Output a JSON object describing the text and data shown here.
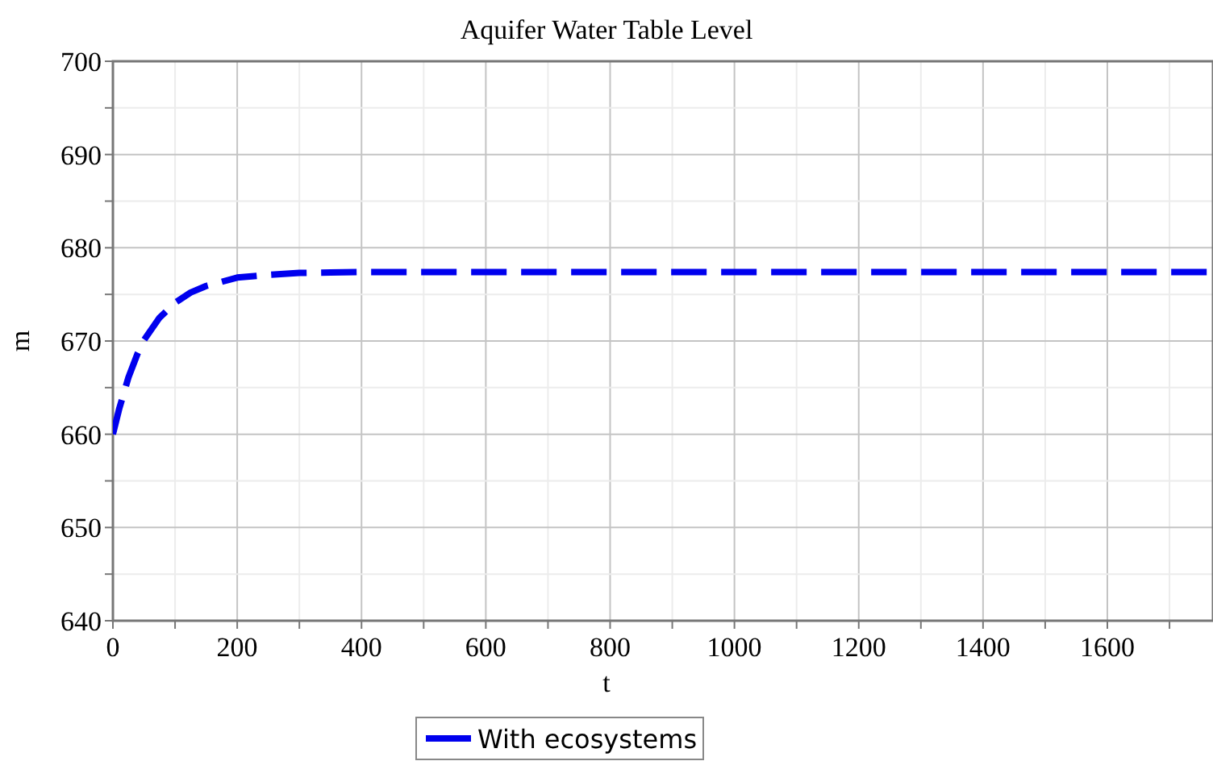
{
  "chart_data": {
    "type": "line",
    "title": "Aquifer Water Table Level",
    "xlabel": "t",
    "ylabel": "m",
    "x": [
      0,
      10,
      25,
      40,
      50,
      75,
      100,
      125,
      150,
      200,
      250,
      300,
      350,
      400,
      600,
      1000,
      1400,
      1770
    ],
    "series": [
      {
        "name": "With ecosystems",
        "color": "#0000ee",
        "values": [
          660,
          662.7,
          666.1,
          668.7,
          670.1,
          672.5,
          674.1,
          675.2,
          675.9,
          676.8,
          677.1,
          677.3,
          677.35,
          677.4,
          677.4,
          677.4,
          677.4,
          677.4
        ]
      }
    ],
    "xlim": [
      0,
      1770
    ],
    "xticks": [
      0,
      {
        "value": 100,
        "label": null
      },
      200,
      {
        "value": 300,
        "label": null
      },
      400,
      {
        "value": 500,
        "label": null
      },
      600,
      {
        "value": 700,
        "label": null
      },
      800,
      {
        "value": 900,
        "label": null
      },
      1000,
      {
        "value": 1100,
        "label": null
      },
      1200,
      {
        "value": 1300,
        "label": null
      },
      1400,
      {
        "value": 1500,
        "label": null
      },
      1600,
      {
        "value": 1700,
        "label": null
      }
    ],
    "ylim": [
      640,
      700
    ],
    "yticks": [
      640,
      {
        "value": 645,
        "label": null
      },
      650,
      {
        "value": 655,
        "label": null
      },
      660,
      {
        "value": 665,
        "label": null
      },
      670,
      {
        "value": 675,
        "label": null
      },
      680,
      {
        "value": 685,
        "label": null
      },
      690,
      {
        "value": 695,
        "label": null
      },
      700
    ],
    "grid": true,
    "legend": "bottom",
    "line_style": "dashed",
    "marker": "none"
  }
}
